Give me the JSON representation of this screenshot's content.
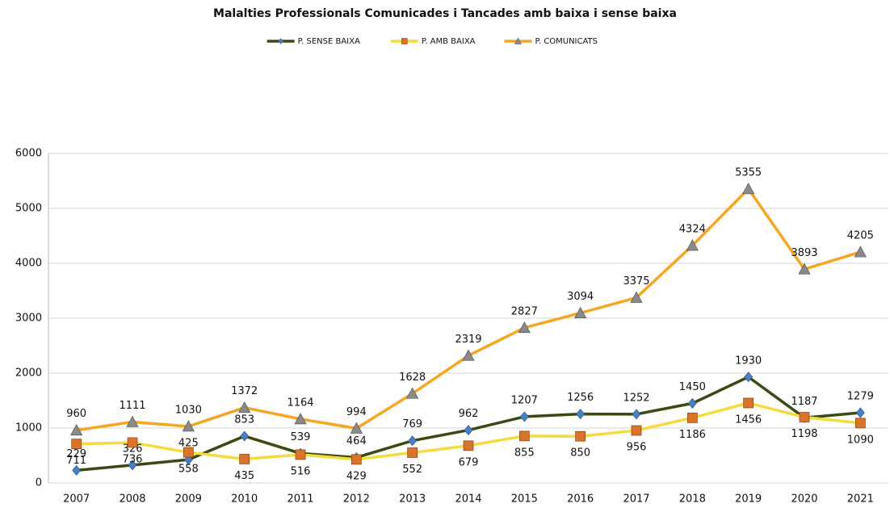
{
  "chart_data": {
    "type": "line",
    "title": "Malalties Professionals Comunicades i Tancades amb baixa i sense baixa",
    "categories": [
      "2007",
      "2008",
      "2009",
      "2010",
      "2011",
      "2012",
      "2013",
      "2014",
      "2015",
      "2016",
      "2017",
      "2018",
      "2019",
      "2020",
      "2021"
    ],
    "series": [
      {
        "name": "P. SENSE BAIXA",
        "color": "#3b4a12",
        "marker": "diamond",
        "marker_color": "#4a7fc4",
        "label_side": "above",
        "values": [
          229,
          326,
          425,
          853,
          539,
          464,
          769,
          962,
          1207,
          1256,
          1252,
          1450,
          1930,
          1187,
          1279
        ]
      },
      {
        "name": "P. AMB BAIXA",
        "color": "#f5dc3c",
        "marker": "square",
        "marker_color": "#d9742a",
        "label_side": "below",
        "values": [
          711,
          736,
          558,
          435,
          516,
          429,
          552,
          679,
          855,
          850,
          956,
          1186,
          1456,
          1198,
          1090
        ]
      },
      {
        "name": "P. COMUNICATS",
        "color": "#f5a623",
        "marker": "triangle",
        "marker_color": "#8a8a8a",
        "label_side": "above",
        "values": [
          960,
          1111,
          1030,
          1372,
          1164,
          994,
          1628,
          2319,
          2827,
          3094,
          3375,
          4324,
          5355,
          3893,
          4205
        ]
      }
    ],
    "ylim": [
      0,
      6000
    ],
    "yticks": [
      0,
      1000,
      2000,
      3000,
      4000,
      5000,
      6000
    ],
    "grid": true,
    "legend": "top"
  }
}
